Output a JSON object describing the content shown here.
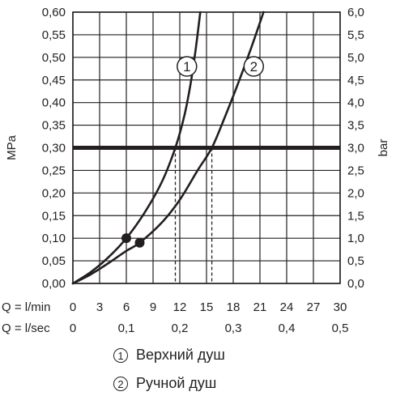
{
  "chart_data": {
    "type": "line",
    "left_axis": {
      "label": "MPa",
      "ticks": [
        "0,00",
        "0,05",
        "0,10",
        "0,15",
        "0,20",
        "0,25",
        "0,30",
        "0,35",
        "0,40",
        "0,45",
        "0,50",
        "0,55",
        "0,60"
      ],
      "range": [
        0,
        0.6
      ]
    },
    "right_axis": {
      "label": "bar",
      "ticks": [
        "0,0",
        "0,5",
        "1,0",
        "1,5",
        "2,0",
        "2,5",
        "3,0",
        "3,5",
        "4,0",
        "4,5",
        "5,0",
        "5,5",
        "6,0"
      ]
    },
    "x_axis_lmin": {
      "label": "Q = l/min",
      "ticks": [
        "0",
        "3",
        "6",
        "9",
        "12",
        "15",
        "18",
        "21",
        "24",
        "27",
        "30"
      ],
      "range": [
        0,
        30
      ]
    },
    "x_axis_lsec": {
      "label": "Q = l/sec",
      "ticks": [
        {
          "value": 0,
          "label": "0"
        },
        {
          "value": 0.1,
          "label": "0,1"
        },
        {
          "value": 0.2,
          "label": "0,2"
        },
        {
          "value": 0.3,
          "label": "0,3"
        },
        {
          "value": 0.4,
          "label": "0,4"
        },
        {
          "value": 0.5,
          "label": "0,5"
        }
      ]
    },
    "reference_line": {
      "y": 0.3
    },
    "series": [
      {
        "id": "1",
        "marker_label": "1",
        "name": "Верхний душ",
        "points": [
          [
            0,
            0
          ],
          [
            2,
            0.025
          ],
          [
            4,
            0.058
          ],
          [
            6,
            0.1
          ],
          [
            8,
            0.155
          ],
          [
            10,
            0.225
          ],
          [
            11.5,
            0.3
          ],
          [
            12.5,
            0.37
          ],
          [
            13.2,
            0.44
          ],
          [
            13.8,
            0.52
          ],
          [
            14.3,
            0.6
          ]
        ],
        "dot": [
          6,
          0.1
        ],
        "crossing_at_ref": 11.5
      },
      {
        "id": "2",
        "marker_label": "2",
        "name": "Ручной душ",
        "points": [
          [
            0,
            0
          ],
          [
            2,
            0.02
          ],
          [
            4,
            0.045
          ],
          [
            6,
            0.072
          ],
          [
            7.5,
            0.09
          ],
          [
            10,
            0.135
          ],
          [
            12,
            0.185
          ],
          [
            14,
            0.25
          ],
          [
            15.6,
            0.3
          ],
          [
            17,
            0.365
          ],
          [
            18.5,
            0.44
          ],
          [
            20,
            0.52
          ],
          [
            21.4,
            0.6
          ]
        ],
        "dot": [
          7.5,
          0.09
        ],
        "crossing_at_ref": 15.6
      }
    ],
    "grid": true
  },
  "legend": [
    {
      "mark": "1",
      "label": "Верхний душ"
    },
    {
      "mark": "2",
      "label": "Ручной душ"
    }
  ]
}
